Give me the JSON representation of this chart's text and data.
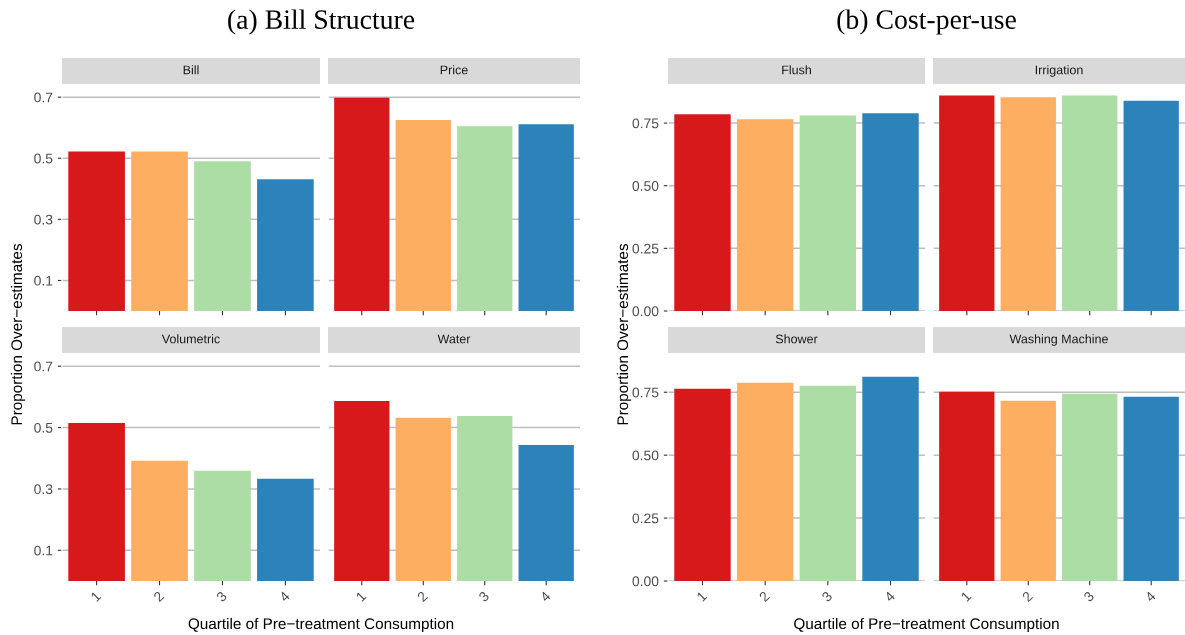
{
  "chart_data": [
    {
      "type": "bar",
      "title": "Bill",
      "annotations": [
        "(a) Bill Structure"
      ],
      "ylabel": "Proportion Over−estimates",
      "categories": [
        "1",
        "2",
        "3",
        "4"
      ],
      "values": [
        0.522,
        0.522,
        0.49,
        0.431
      ],
      "colors": [
        "#d7191c",
        "#fdae61",
        "#abdda4",
        "#2b83ba"
      ],
      "ylim": [
        0,
        0.73
      ],
      "yticks": [
        0.1,
        0.3,
        0.5,
        0.7
      ],
      "grid": "y",
      "tick_labels": "y"
    },
    {
      "type": "bar",
      "title": "Price",
      "categories": [
        "1",
        "2",
        "3",
        "4"
      ],
      "values": [
        0.698,
        0.625,
        0.605,
        0.611
      ],
      "colors": [
        "#d7191c",
        "#fdae61",
        "#abdda4",
        "#2b83ba"
      ],
      "ylim": [
        0,
        0.73
      ],
      "yticks": [
        0.1,
        0.3,
        0.5,
        0.7
      ],
      "grid": "y",
      "tick_labels": false
    },
    {
      "type": "bar",
      "title": "Volumetric",
      "xlabel": "Quartile of Pre−treatment Consumption",
      "categories": [
        "1",
        "2",
        "3",
        "4"
      ],
      "values": [
        0.515,
        0.392,
        0.359,
        0.333
      ],
      "colors": [
        "#d7191c",
        "#fdae61",
        "#abdda4",
        "#2b83ba"
      ],
      "ylim": [
        0,
        0.73
      ],
      "yticks": [
        0.1,
        0.3,
        0.5,
        0.7
      ],
      "grid": "y"
    },
    {
      "type": "bar",
      "title": "Water",
      "categories": [
        "1",
        "2",
        "3",
        "4"
      ],
      "values": [
        0.587,
        0.532,
        0.538,
        0.443
      ],
      "colors": [
        "#d7191c",
        "#fdae61",
        "#abdda4",
        "#2b83ba"
      ],
      "ylim": [
        0,
        0.73
      ],
      "yticks": [
        0.1,
        0.3,
        0.5,
        0.7
      ],
      "grid": "y",
      "tick_labels": "x"
    },
    {
      "type": "bar",
      "title": "Flush",
      "annotations": [
        "(b) Cost-per-use"
      ],
      "ylabel": "Proportion Over−estimates",
      "categories": [
        "1",
        "2",
        "3",
        "4"
      ],
      "values": [
        0.785,
        0.765,
        0.78,
        0.789
      ],
      "colors": [
        "#d7191c",
        "#fdae61",
        "#abdda4",
        "#2b83ba"
      ],
      "ylim": [
        0,
        0.89
      ],
      "yticks": [
        {
          "value": 0,
          "label": "0.00"
        },
        {
          "value": 0.25,
          "label": "0.25"
        },
        {
          "value": 0.5,
          "label": "0.50"
        },
        {
          "value": 0.75,
          "label": "0.75"
        }
      ],
      "grid": "y",
      "tick_labels": "y"
    },
    {
      "type": "bar",
      "title": "Irrigation",
      "categories": [
        "1",
        "2",
        "3",
        "4"
      ],
      "values": [
        0.86,
        0.853,
        0.86,
        0.839
      ],
      "colors": [
        "#d7191c",
        "#fdae61",
        "#abdda4",
        "#2b83ba"
      ],
      "ylim": [
        0,
        0.89
      ],
      "yticks": [
        0,
        0.25,
        0.5,
        0.75
      ],
      "grid": "y",
      "tick_labels": false
    },
    {
      "type": "bar",
      "title": "Shower",
      "xlabel": "Quartile of Pre−treatment Consumption",
      "categories": [
        "1",
        "2",
        "3",
        "4"
      ],
      "values": [
        0.764,
        0.788,
        0.776,
        0.812
      ],
      "colors": [
        "#d7191c",
        "#fdae61",
        "#abdda4",
        "#2b83ba"
      ],
      "ylim": [
        0,
        0.89
      ],
      "yticks": [
        {
          "value": 0,
          "label": "0.00"
        },
        {
          "value": 0.25,
          "label": "0.25"
        },
        {
          "value": 0.5,
          "label": "0.50"
        },
        {
          "value": 0.75,
          "label": "0.75"
        }
      ],
      "grid": "y"
    },
    {
      "type": "bar",
      "title": "Washing Machine",
      "categories": [
        "1",
        "2",
        "3",
        "4"
      ],
      "values": [
        0.752,
        0.716,
        0.744,
        0.732
      ],
      "colors": [
        "#d7191c",
        "#fdae61",
        "#abdda4",
        "#2b83ba"
      ],
      "ylim": [
        0,
        0.89
      ],
      "yticks": [
        0,
        0.25,
        0.5,
        0.75
      ],
      "grid": "y",
      "tick_labels": "x"
    }
  ]
}
